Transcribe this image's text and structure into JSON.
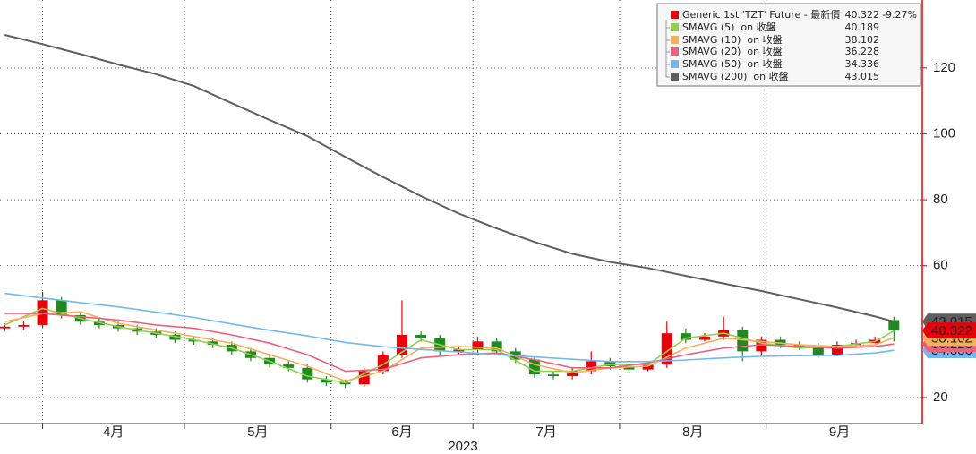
{
  "chart_data": {
    "type": "candlestick",
    "x_label": "2023",
    "xlim": [
      0,
      195
    ],
    "xticks": [
      {
        "value": 9,
        "label": "4月"
      },
      {
        "value": 39,
        "label": "5月"
      },
      {
        "value": 70,
        "label": "6月"
      },
      {
        "value": 100,
        "label": "7月"
      },
      {
        "value": 131,
        "label": "8月"
      },
      {
        "value": 162,
        "label": "9月"
      }
    ],
    "ylim": [
      12.1,
      140.6
    ],
    "yticks": [
      20,
      60,
      80,
      100,
      120
    ],
    "grid": true,
    "legend": "top-right",
    "candles": {
      "name": "Generic 1st 'TZT' Future - 最新價",
      "change_label": "-9.27%",
      "up_color": "#e8000b",
      "down_color": "#1f8a1f",
      "x": [
        1,
        5,
        9,
        13,
        17,
        21,
        25,
        29,
        33,
        37,
        41,
        45,
        49,
        53,
        57,
        61,
        65,
        69,
        73,
        77,
        81,
        85,
        89,
        93,
        97,
        101,
        105,
        109,
        113,
        117,
        121,
        125,
        129,
        133,
        137,
        141,
        145,
        149,
        153,
        157,
        161,
        165,
        169,
        173,
        177,
        181,
        185,
        189
      ],
      "open": [
        41.0,
        41.5,
        42.0,
        49.5,
        45.0,
        43.0,
        42.0,
        41.0,
        40.0,
        39.0,
        37.5,
        37.0,
        36.0,
        34.0,
        32.0,
        30.0,
        29.0,
        25.5,
        24.5,
        24.0,
        28.0,
        33.0,
        39.0,
        38.0,
        34.0,
        34.5,
        37.0,
        34.0,
        31.5,
        27.0,
        26.5,
        28.0,
        31.0,
        29.5,
        28.5,
        30.0,
        39.5,
        37.5,
        38.5,
        40.5,
        34.0,
        37.5,
        36.0,
        35.5,
        33.0,
        36.0,
        36.5,
        43.5
      ],
      "high": [
        42.5,
        43,
        52,
        50.5,
        46,
        44,
        43,
        42,
        41,
        40,
        38.5,
        38,
        37,
        35,
        33,
        31,
        30,
        26.5,
        25.5,
        29,
        34,
        49.5,
        40,
        39,
        35.5,
        38.5,
        38,
        35,
        32.5,
        28,
        29,
        34,
        32,
        30.5,
        31,
        43,
        41,
        39.5,
        44.5,
        41.5,
        38.5,
        38.5,
        37,
        36.5,
        37,
        37.5,
        38.5,
        44.5
      ],
      "low": [
        40,
        40.5,
        41,
        44,
        42,
        41,
        40,
        39,
        38,
        36.5,
        36,
        35,
        33,
        31,
        29,
        28,
        24.5,
        23.5,
        23,
        23.5,
        27,
        32,
        37,
        33,
        33,
        33.5,
        33,
        30.5,
        26,
        25.5,
        25.5,
        27,
        28.5,
        27.5,
        28,
        29,
        36.5,
        37,
        37.5,
        31,
        33,
        35,
        34.5,
        32,
        32.5,
        35,
        36.5,
        37
      ],
      "close": [
        41.5,
        42.0,
        49.5,
        45.0,
        43.0,
        42.0,
        41.0,
        40.0,
        39.0,
        37.5,
        37.0,
        36.0,
        34.0,
        32.0,
        30.0,
        29.0,
        25.5,
        24.5,
        24.0,
        28.0,
        33.0,
        39.0,
        38.0,
        34.0,
        34.5,
        37.0,
        34.0,
        31.5,
        27.0,
        26.5,
        28.0,
        31.0,
        29.5,
        28.5,
        30.0,
        39.5,
        37.5,
        38.5,
        40.5,
        34.0,
        37.5,
        36.0,
        35.5,
        33.0,
        36.0,
        36.5,
        37.5,
        40.322
      ]
    },
    "series": [
      {
        "name": "SMAVG (5)  on 收盤",
        "color": "#92d050",
        "x": [
          1,
          9,
          17,
          25,
          33,
          41,
          49,
          57,
          65,
          73,
          81,
          89,
          97,
          105,
          113,
          121,
          129,
          137,
          145,
          153,
          161,
          169,
          177,
          185,
          189
        ],
        "values": [
          42.0,
          47.0,
          44.0,
          41.5,
          39.5,
          37.5,
          35.0,
          31.0,
          26.5,
          24.5,
          30.0,
          37.5,
          34.5,
          34.5,
          28.0,
          28.0,
          30.0,
          30.0,
          38.0,
          39.5,
          36.5,
          35.0,
          35.5,
          37.0,
          40.189
        ]
      },
      {
        "name": "SMAVG (10)  on 收盤",
        "color": "#f5b05c",
        "x": [
          1,
          9,
          17,
          25,
          33,
          41,
          49,
          57,
          65,
          73,
          81,
          89,
          97,
          105,
          113,
          121,
          129,
          137,
          145,
          153,
          161,
          169,
          177,
          185,
          189
        ],
        "values": [
          43.0,
          45.5,
          46.0,
          42.5,
          40.5,
          38.5,
          36.5,
          33.0,
          29.5,
          25.0,
          28.0,
          35.0,
          35.5,
          35.0,
          30.0,
          27.5,
          29.0,
          29.5,
          35.0,
          38.0,
          37.0,
          36.0,
          35.5,
          36.0,
          38.102
        ]
      },
      {
        "name": "SMAVG (20)  on 收盤",
        "color": "#f0607e",
        "x": [
          1,
          9,
          17,
          25,
          33,
          41,
          49,
          57,
          65,
          73,
          81,
          89,
          97,
          105,
          113,
          121,
          129,
          137,
          145,
          153,
          161,
          169,
          177,
          185,
          189
        ],
        "values": [
          45.5,
          45.5,
          44.5,
          43.5,
          42.0,
          41.0,
          39.0,
          36.5,
          33.0,
          28.0,
          28.5,
          32.0,
          33.0,
          33.5,
          31.5,
          29.0,
          29.0,
          30.5,
          33.0,
          35.0,
          36.0,
          35.5,
          35.0,
          35.5,
          36.228
        ]
      },
      {
        "name": "SMAVG (50)  on 收盤",
        "color": "#72b9f2",
        "x": [
          1,
          9,
          17,
          25,
          33,
          41,
          49,
          57,
          65,
          73,
          81,
          89,
          97,
          105,
          113,
          121,
          129,
          137,
          145,
          153,
          161,
          169,
          177,
          185,
          189
        ],
        "values": [
          51.6,
          50.2,
          48.8,
          47.5,
          45.9,
          44.3,
          42.3,
          40.4,
          38.7,
          36.7,
          35.4,
          34.6,
          33.8,
          33.0,
          32.3,
          31.6,
          30.9,
          30.9,
          31.4,
          32.0,
          32.5,
          32.7,
          32.8,
          33.5,
          34.336
        ]
      },
      {
        "name": "SMAVG (200)  on 收盤",
        "color": "#5f5f5f",
        "x": [
          1,
          9,
          17,
          25,
          33,
          41,
          49,
          57,
          65,
          73,
          81,
          89,
          97,
          105,
          113,
          121,
          129,
          137,
          145,
          153,
          161,
          169,
          177,
          185,
          189
        ],
        "values": [
          130.0,
          127.2,
          124.2,
          121.0,
          118.1,
          114.5,
          109.3,
          104.2,
          99.3,
          93.0,
          86.9,
          81.1,
          75.8,
          71.3,
          67.2,
          63.6,
          61.1,
          59.3,
          56.9,
          54.6,
          52.3,
          49.8,
          47.3,
          44.6,
          43.015
        ]
      }
    ]
  }
}
